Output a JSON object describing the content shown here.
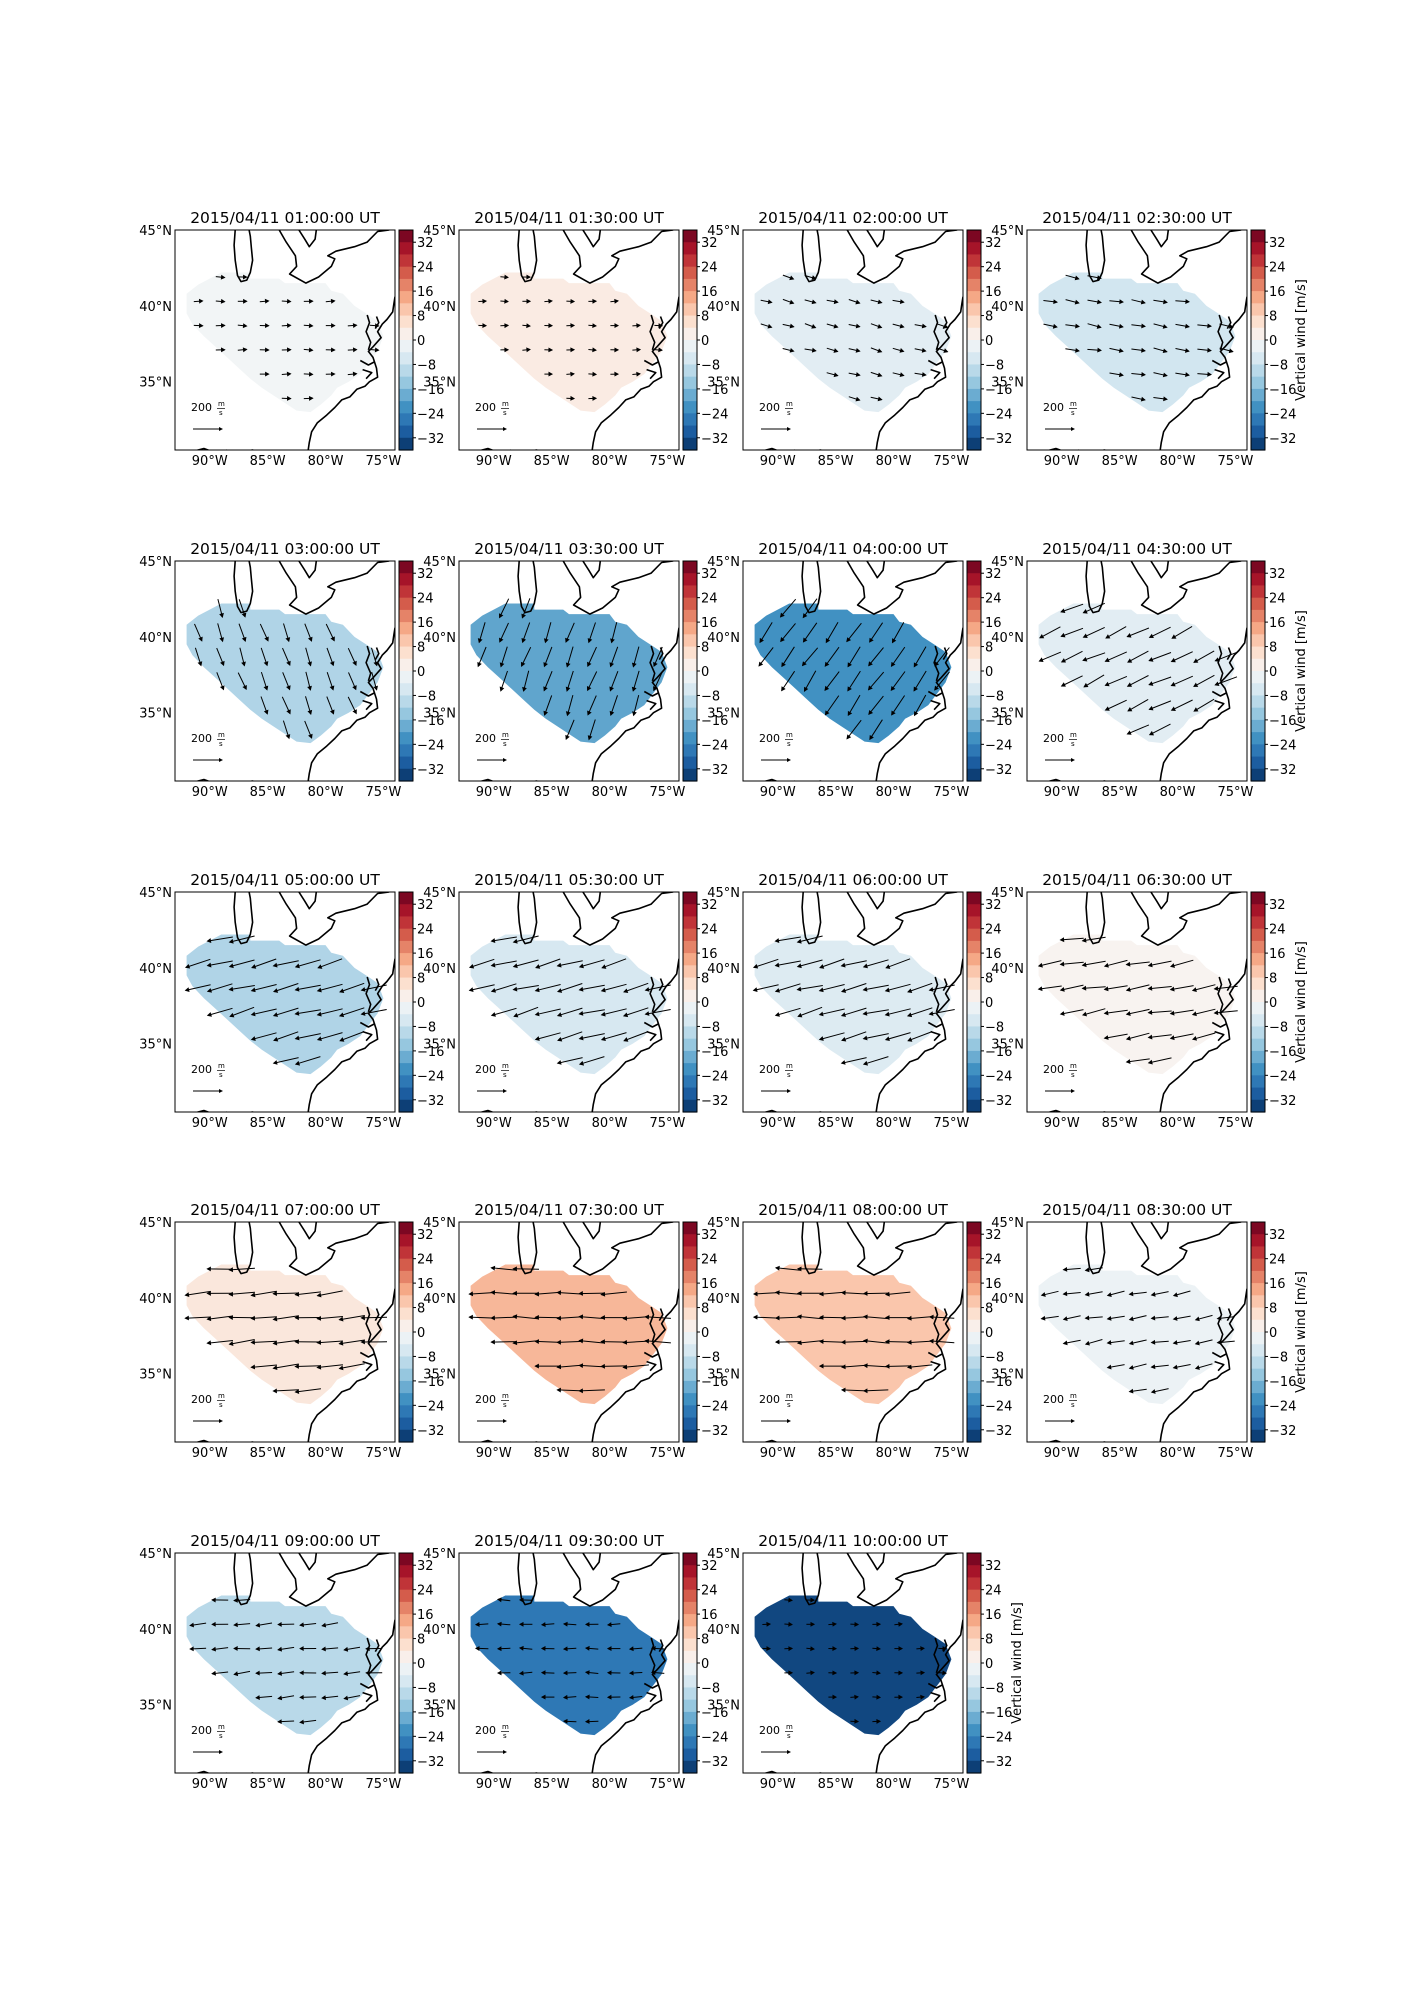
{
  "figure": {
    "colorbar_label": "Vertical wind [m/s]",
    "colorbar_ticks": [
      "32",
      "24",
      "16",
      "8",
      "0",
      "−8",
      "−16",
      "−24",
      "−32"
    ],
    "lat_labels": [
      "45°N",
      "40°N",
      "35°N"
    ],
    "lon_labels": [
      "90°W",
      "85°W",
      "80°W",
      "75°W"
    ],
    "scale_label": "200",
    "scale_unit_num": "m",
    "scale_unit_den": "s",
    "colors": {
      "dark_blue": "#053061",
      "blue": "#2166ac",
      "mid_blue": "#4393c3",
      "light_blue": "#92c5de",
      "pale_blue": "#d1e5f0",
      "white": "#f7f7f7",
      "pale_red": "#fddbc7",
      "light_red": "#f4a582",
      "mid_red": "#d6604d",
      "red": "#b2182b",
      "dark_red": "#67001f"
    }
  },
  "panels": [
    {
      "title": "2015/04/11 01:00:00 UT",
      "vertical_wind": -1,
      "wind_dir_deg": 0,
      "wind_mag": 0.4
    },
    {
      "title": "2015/04/11 01:30:00 UT",
      "vertical_wind": 3,
      "wind_dir_deg": 0,
      "wind_mag": 0.3
    },
    {
      "title": "2015/04/11 02:00:00 UT",
      "vertical_wind": -4,
      "wind_dir_deg": -15,
      "wind_mag": 0.6
    },
    {
      "title": "2015/04/11 02:30:00 UT",
      "vertical_wind": -7,
      "wind_dir_deg": -10,
      "wind_mag": 0.8
    },
    {
      "title": "2015/04/11 03:00:00 UT",
      "vertical_wind": -11,
      "wind_dir_deg": -70,
      "wind_mag": 1.2
    },
    {
      "title": "2015/04/11 03:30:00 UT",
      "vertical_wind": -19,
      "wind_dir_deg": -110,
      "wind_mag": 1.4
    },
    {
      "title": "2015/04/11 04:00:00 UT",
      "vertical_wind": -22,
      "wind_dir_deg": -125,
      "wind_mag": 1.6
    },
    {
      "title": "2015/04/11 04:30:00 UT",
      "vertical_wind": -4,
      "wind_dir_deg": -155,
      "wind_mag": 1.6
    },
    {
      "title": "2015/04/11 05:00:00 UT",
      "vertical_wind": -11,
      "wind_dir_deg": -165,
      "wind_mag": 1.8
    },
    {
      "title": "2015/04/11 05:30:00 UT",
      "vertical_wind": -6,
      "wind_dir_deg": -165,
      "wind_mag": 1.8
    },
    {
      "title": "2015/04/11 06:00:00 UT",
      "vertical_wind": -5,
      "wind_dir_deg": -165,
      "wind_mag": 1.8
    },
    {
      "title": "2015/04/11 06:30:00 UT",
      "vertical_wind": 1,
      "wind_dir_deg": -170,
      "wind_mag": 1.6
    },
    {
      "title": "2015/04/11 07:00:00 UT",
      "vertical_wind": 4,
      "wind_dir_deg": -175,
      "wind_mag": 1.8
    },
    {
      "title": "2015/04/11 07:30:00 UT",
      "vertical_wind": 12,
      "wind_dir_deg": 180,
      "wind_mag": 1.8
    },
    {
      "title": "2015/04/11 08:00:00 UT",
      "vertical_wind": 10,
      "wind_dir_deg": 180,
      "wind_mag": 1.7
    },
    {
      "title": "2015/04/11 08:30:00 UT",
      "vertical_wind": -2,
      "wind_dir_deg": -170,
      "wind_mag": 1.1
    },
    {
      "title": "2015/04/11 09:00:00 UT",
      "vertical_wind": -10,
      "wind_dir_deg": -175,
      "wind_mag": 1.0
    },
    {
      "title": "2015/04/11 09:30:00 UT",
      "vertical_wind": -26,
      "wind_dir_deg": 180,
      "wind_mag": 0.7
    },
    {
      "title": "2015/04/11 10:00:00 UT",
      "vertical_wind": -33,
      "wind_dir_deg": 0,
      "wind_mag": 0.3
    }
  ]
}
